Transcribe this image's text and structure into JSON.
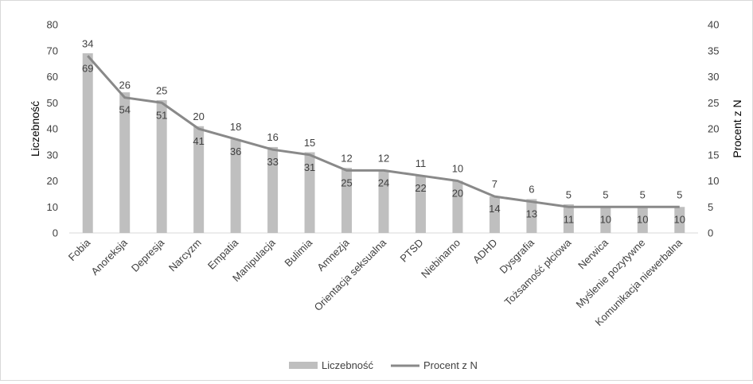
{
  "chart_data": {
    "type": "bar+line",
    "categories": [
      "Fobia",
      "Anoreksja",
      "Depresja",
      "Narcyzm",
      "Empatia",
      "Manipulacja",
      "Bulimia",
      "Amnezja",
      "Orientacja seksualna",
      "PTSD",
      "Niebinarno",
      "ADHD",
      "Dysgrafia",
      "Tożsamość płciowa",
      "Nerwica",
      "Myślenie pozytywne",
      "Komunikacja niewerbalna"
    ],
    "series": [
      {
        "name": "Liczebność",
        "type": "bar",
        "axis": "left",
        "color": "#bfbfbf",
        "values": [
          69,
          54,
          51,
          41,
          36,
          33,
          31,
          25,
          24,
          22,
          20,
          14,
          13,
          11,
          10,
          10,
          10
        ]
      },
      {
        "name": "Procent z N",
        "type": "line",
        "axis": "right",
        "color": "#898989",
        "values": [
          34,
          26,
          25,
          20,
          18,
          16,
          15,
          12,
          12,
          11,
          10,
          7,
          6,
          5,
          5,
          5,
          5
        ]
      }
    ],
    "y_left": {
      "label": "Liczebność",
      "min": 0,
      "max": 80,
      "ticks": [
        "0",
        "10",
        "20",
        "30",
        "40",
        "50",
        "60",
        "70",
        "80"
      ]
    },
    "y_right": {
      "label": "Procent z N",
      "min": 0,
      "max": 40,
      "ticks": [
        "0",
        "5",
        "10",
        "15",
        "20",
        "25",
        "30",
        "35",
        "40"
      ]
    },
    "grid": false,
    "legend_position": "bottom"
  }
}
